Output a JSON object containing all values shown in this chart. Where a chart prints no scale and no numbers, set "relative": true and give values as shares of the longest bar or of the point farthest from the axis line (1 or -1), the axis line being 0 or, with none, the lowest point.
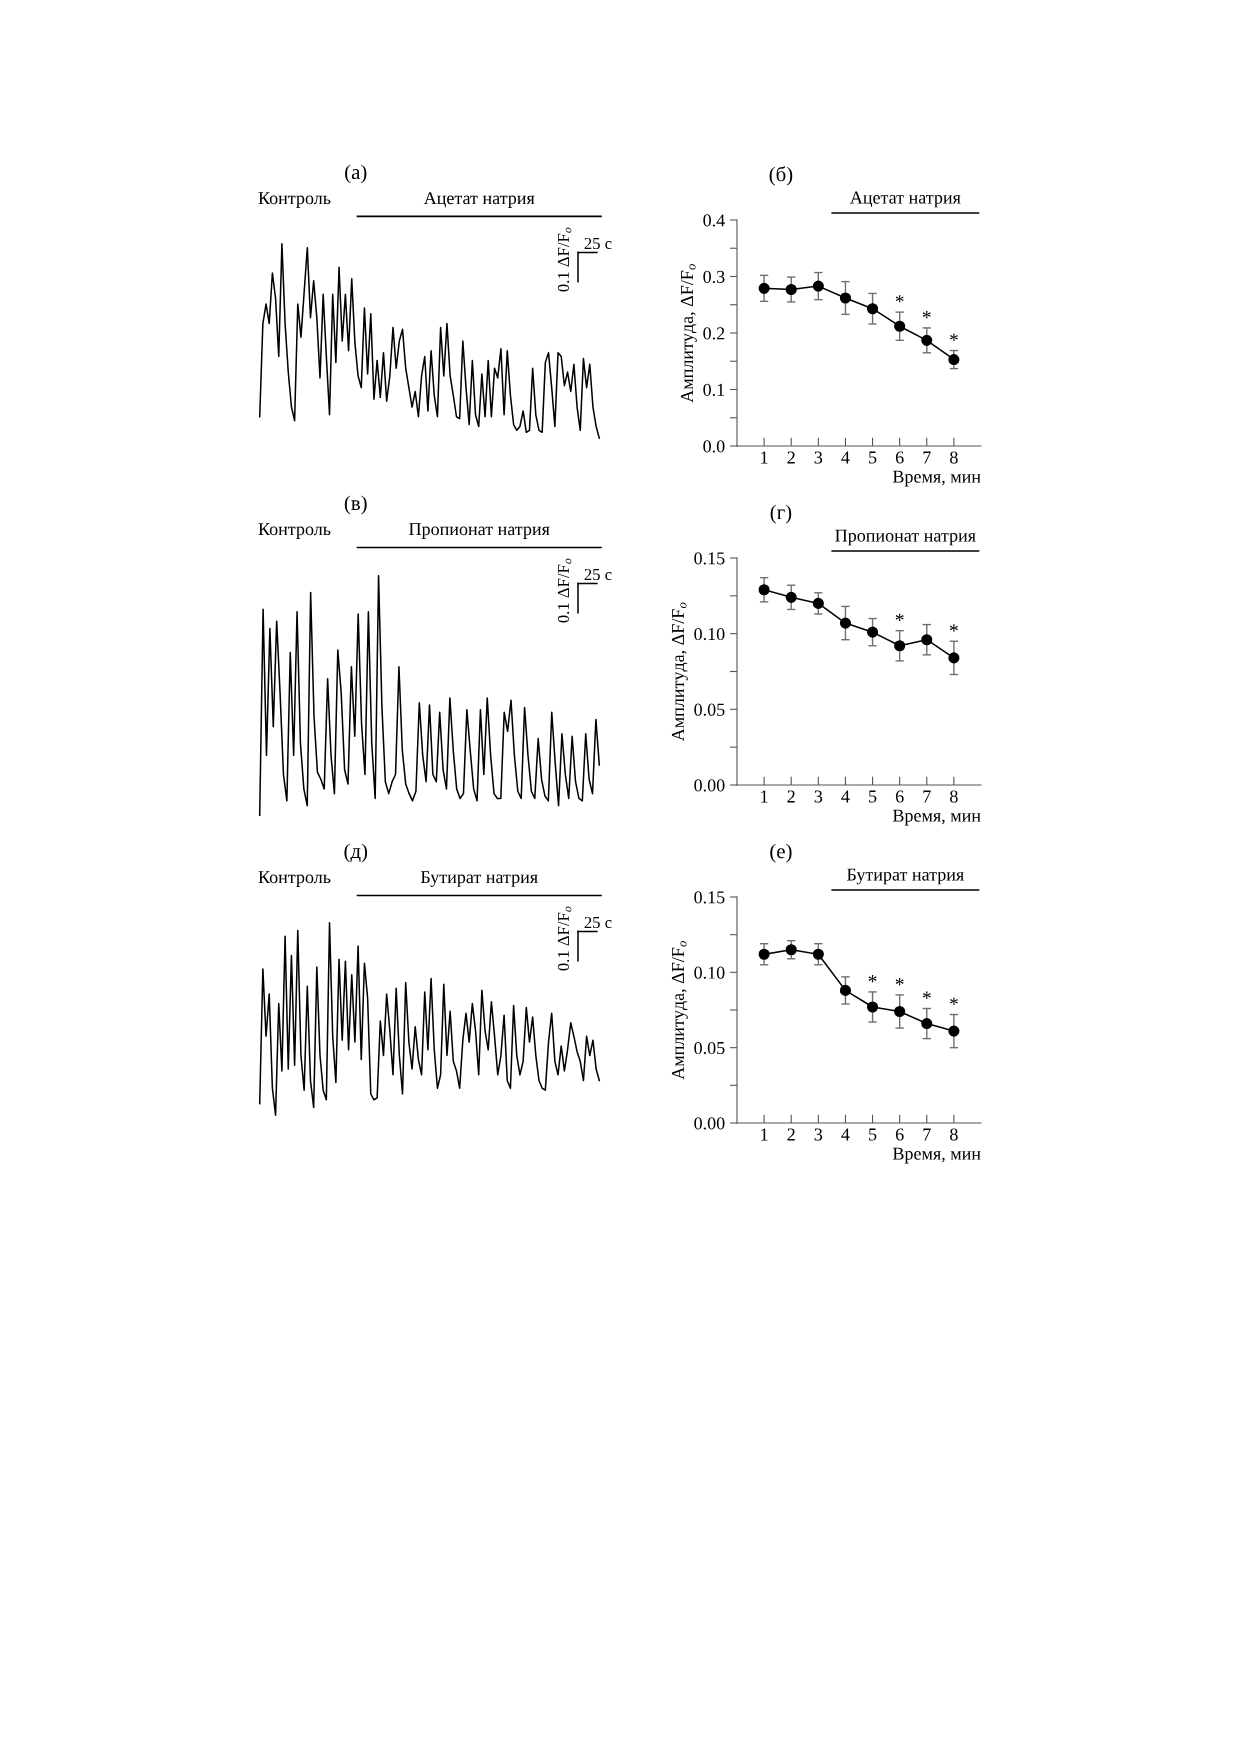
{
  "chart_data": [
    {
      "type": "line",
      "title": "(а)",
      "relative": true,
      "tick_labels": false,
      "grid": false,
      "marker": "none",
      "line_style": "solid",
      "annotations": [
        "Контроль",
        "Ацетат натрия",
        "0.1 ΔF/F$_{o}$",
        "25 с"
      ],
      "categories": [
        null,
        null,
        null,
        null,
        null,
        null,
        null,
        null,
        null,
        null,
        null,
        null,
        null,
        null,
        null,
        null,
        null,
        null,
        null,
        null,
        null,
        null,
        null,
        null,
        null,
        null,
        null,
        null,
        null,
        null,
        null,
        null,
        null,
        null,
        null,
        null,
        null,
        null,
        null,
        null,
        null,
        null,
        null,
        null,
        null,
        null,
        null,
        null,
        null,
        null,
        null,
        null,
        null,
        null,
        null,
        null,
        null,
        null,
        null,
        null,
        null,
        null,
        null,
        null,
        null,
        null,
        null,
        null,
        null,
        null,
        null,
        null,
        null,
        null,
        null,
        null,
        null,
        null,
        null,
        null,
        null,
        null,
        null,
        null,
        null,
        null,
        null,
        null,
        null,
        null,
        null,
        null,
        null,
        null,
        null,
        null,
        null,
        null,
        null,
        null,
        null,
        null,
        null,
        null,
        null,
        null,
        null,
        null
      ],
      "series": [
        {
          "color": "#000000",
          "values": [
            0.11,
            0.59,
            0.69,
            0.59,
            0.85,
            0.72,
            0.42,
            1.0,
            0.59,
            0.34,
            0.16,
            0.09,
            0.69,
            0.52,
            0.75,
            0.98,
            0.62,
            0.81,
            0.62,
            0.31,
            0.74,
            0.42,
            0.12,
            0.74,
            0.39,
            0.88,
            0.5,
            0.74,
            0.45,
            0.82,
            0.49,
            0.32,
            0.26,
            0.67,
            0.33,
            0.64,
            0.2,
            0.4,
            0.21,
            0.44,
            0.19,
            0.32,
            0.57,
            0.36,
            0.5,
            0.56,
            0.36,
            0.26,
            0.16,
            0.24,
            0.11,
            0.32,
            0.42,
            0.14,
            0.45,
            0.22,
            0.11,
            0.57,
            0.32,
            0.59,
            0.32,
            0.22,
            0.11,
            0.1,
            0.5,
            0.26,
            0.07,
            0.4,
            0.12,
            0.06,
            0.33,
            0.11,
            0.4,
            0.11,
            0.36,
            0.31,
            0.46,
            0.12,
            0.45,
            0.22,
            0.07,
            0.04,
            0.06,
            0.14,
            0.03,
            0.04,
            0.36,
            0.12,
            0.04,
            0.03,
            0.39,
            0.44,
            0.26,
            0.06,
            0.44,
            0.42,
            0.27,
            0.34,
            0.24,
            0.38,
            0.16,
            0.04,
            0.41,
            0.26,
            0.38,
            0.16,
            0.06,
            0
          ]
        }
      ]
    },
    {
      "type": "line",
      "title": "(б)",
      "xlabel": "Время, мин",
      "ylabel": "Амплитуда, ΔF/F$_{o}$",
      "grid": false,
      "marker": "circle",
      "line_style": "solid",
      "annotations": [
        "Ацетат натрия",
        {
          "text": "*",
          "x": 6,
          "y": 0.237
        },
        {
          "text": "*",
          "x": 7,
          "y": 0.209
        },
        {
          "text": "*",
          "x": 8,
          "y": 0.169
        }
      ],
      "x": [
        1,
        2,
        3,
        4,
        5,
        6,
        7,
        8
      ],
      "series": [
        {
          "color": "#000000",
          "values": [
            0.279,
            0.277,
            0.283,
            0.262,
            0.243,
            0.212,
            0.187,
            0.153
          ],
          "errors": [
            0.023,
            0.022,
            0.024,
            0.029,
            0.027,
            0.025,
            0.022,
            0.016
          ]
        }
      ],
      "xlim": [
        0,
        9
      ],
      "xticks": [
        1,
        2,
        3,
        4,
        5,
        6,
        7,
        8
      ],
      "ylim": [
        0,
        0.4
      ],
      "yticks": [
        {
          "value": 0,
          "label": "0.0"
        },
        {
          "value": 0.05,
          "label": null
        },
        0.1,
        {
          "value": 0.15,
          "label": null
        },
        0.2,
        {
          "value": 0.25,
          "label": null
        },
        0.3,
        {
          "value": 0.35,
          "label": null
        },
        0.4
      ]
    },
    {
      "type": "line",
      "title": "(в)",
      "relative": true,
      "tick_labels": false,
      "grid": false,
      "marker": "none",
      "line_style": "solid",
      "annotations": [
        "Контроль",
        "Пропионат натрия",
        "0.1 ΔF/F$_{o}$",
        "25 с"
      ],
      "categories": [
        null,
        null,
        null,
        null,
        null,
        null,
        null,
        null,
        null,
        null,
        null,
        null,
        null,
        null,
        null,
        null,
        null,
        null,
        null,
        null,
        null,
        null,
        null,
        null,
        null,
        null,
        null,
        null,
        null,
        null,
        null,
        null,
        null,
        null,
        null,
        null,
        null,
        null,
        null,
        null,
        null,
        null,
        null,
        null,
        null,
        null,
        null,
        null,
        null,
        null,
        null,
        null,
        null,
        null,
        null,
        null,
        null,
        null,
        null,
        null,
        null,
        null,
        null,
        null,
        null,
        null,
        null,
        null,
        null,
        null,
        null,
        null,
        null,
        null,
        null,
        null,
        null,
        null,
        null,
        null,
        null,
        null,
        null,
        null,
        null,
        null,
        null,
        null,
        null,
        null,
        null,
        null,
        null,
        null,
        null,
        null,
        null,
        null,
        null,
        null,
        null
      ],
      "series": [
        {
          "color": "#000000",
          "values": [
            0,
            0.86,
            0.25,
            0.78,
            0.37,
            0.81,
            0.51,
            0.17,
            0.06,
            0.68,
            0.25,
            0.85,
            0.3,
            0.11,
            0.04,
            0.93,
            0.41,
            0.18,
            0.15,
            0.11,
            0.57,
            0.25,
            0.09,
            0.69,
            0.51,
            0.19,
            0.13,
            0.62,
            0.33,
            0.84,
            0.38,
            0.17,
            0.85,
            0.3,
            0.07,
            1.0,
            0.45,
            0.14,
            0.09,
            0.14,
            0.17,
            0.62,
            0.27,
            0.13,
            0.09,
            0.06,
            0.1,
            0.47,
            0.25,
            0.14,
            0.46,
            0.17,
            0.14,
            0.43,
            0.19,
            0.11,
            0.49,
            0.27,
            0.11,
            0.07,
            0.09,
            0.44,
            0.27,
            0.11,
            0.06,
            0.44,
            0.17,
            0.49,
            0.25,
            0.09,
            0.07,
            0.07,
            0.43,
            0.35,
            0.48,
            0.25,
            0.1,
            0.07,
            0.45,
            0.25,
            0.1,
            0.07,
            0.32,
            0.15,
            0.08,
            0.06,
            0.43,
            0.22,
            0.04,
            0.34,
            0.17,
            0.07,
            0.33,
            0.14,
            0.07,
            0.06,
            0.34,
            0.15,
            0.09,
            0.4,
            0.21
          ]
        }
      ]
    },
    {
      "type": "line",
      "title": "(г)",
      "xlabel": "Время, мин",
      "ylabel": "Амплитуда, ΔF/F$_{o}$",
      "grid": false,
      "marker": "circle",
      "line_style": "solid",
      "annotations": [
        "Пропионат натрия",
        {
          "text": "*",
          "x": 6,
          "y": 0.102
        },
        {
          "text": "*",
          "x": 8,
          "y": 0.095
        }
      ],
      "x": [
        1,
        2,
        3,
        4,
        5,
        6,
        7,
        8
      ],
      "series": [
        {
          "color": "#000000",
          "values": [
            0.129,
            0.124,
            0.12,
            0.107,
            0.101,
            0.092,
            0.096,
            0.084
          ],
          "errors": [
            0.008,
            0.008,
            0.007,
            0.011,
            0.009,
            0.01,
            0.01,
            0.011
          ]
        }
      ],
      "xlim": [
        0,
        9
      ],
      "xticks": [
        1,
        2,
        3,
        4,
        5,
        6,
        7,
        8
      ],
      "ylim": [
        0,
        0.15
      ],
      "yticks": [
        {
          "value": 0,
          "label": "0.00"
        },
        {
          "value": 0.025,
          "label": null
        },
        0.05,
        {
          "value": 0.075,
          "label": null
        },
        {
          "value": 0.1,
          "label": "0.10"
        },
        {
          "value": 0.125,
          "label": null
        },
        0.15
      ]
    },
    {
      "type": "line",
      "title": "(д)",
      "relative": true,
      "tick_labels": false,
      "grid": false,
      "marker": "none",
      "line_style": "solid",
      "annotations": [
        "Контроль",
        "Бутират натрия",
        "0.1 ΔF/F$_{o}$",
        "25 с"
      ],
      "categories": [
        null,
        null,
        null,
        null,
        null,
        null,
        null,
        null,
        null,
        null,
        null,
        null,
        null,
        null,
        null,
        null,
        null,
        null,
        null,
        null,
        null,
        null,
        null,
        null,
        null,
        null,
        null,
        null,
        null,
        null,
        null,
        null,
        null,
        null,
        null,
        null,
        null,
        null,
        null,
        null,
        null,
        null,
        null,
        null,
        null,
        null,
        null,
        null,
        null,
        null,
        null,
        null,
        null,
        null,
        null,
        null,
        null,
        null,
        null,
        null,
        null,
        null,
        null,
        null,
        null,
        null,
        null,
        null,
        null,
        null,
        null,
        null,
        null,
        null,
        null,
        null,
        null,
        null,
        null,
        null,
        null,
        null,
        null,
        null,
        null,
        null,
        null,
        null,
        null,
        null,
        null,
        null,
        null,
        null,
        null,
        null,
        null,
        null,
        null,
        null,
        null,
        null,
        null,
        null,
        null,
        null,
        null,
        null
      ],
      "series": [
        {
          "color": "#000000",
          "values": [
            0.06,
            0.76,
            0.41,
            0.63,
            0.14,
            0,
            0.58,
            0.23,
            0.93,
            0.24,
            0.83,
            0.26,
            0.96,
            0.31,
            0.13,
            0.67,
            0.18,
            0.04,
            0.77,
            0.31,
            0.13,
            0.08,
            1.0,
            0.41,
            0.17,
            0.81,
            0.39,
            0.8,
            0.34,
            0.73,
            0.38,
            0.88,
            0.29,
            0.79,
            0.61,
            0.11,
            0.08,
            0.09,
            0.49,
            0.31,
            0.63,
            0.44,
            0.21,
            0.66,
            0.31,
            0.11,
            0.69,
            0.38,
            0.24,
            0.46,
            0.29,
            0.21,
            0.64,
            0.34,
            0.71,
            0.34,
            0.14,
            0.21,
            0.68,
            0.31,
            0.54,
            0.28,
            0.23,
            0.14,
            0.39,
            0.53,
            0.38,
            0.58,
            0.44,
            0.21,
            0.65,
            0.44,
            0.34,
            0.59,
            0.41,
            0.21,
            0.31,
            0.52,
            0.18,
            0.14,
            0.57,
            0.31,
            0.21,
            0.28,
            0.56,
            0.38,
            0.51,
            0.31,
            0.18,
            0.14,
            0.13,
            0.38,
            0.53,
            0.28,
            0.21,
            0.36,
            0.23,
            0.34,
            0.48,
            0.41,
            0.33,
            0.28,
            0.18,
            0.41,
            0.31,
            0.39,
            0.24,
            0.18
          ]
        }
      ]
    },
    {
      "type": "line",
      "title": "(е)",
      "xlabel": "Время, мин",
      "ylabel": "Амплитуда, ΔF/F$_{o}$",
      "grid": false,
      "marker": "circle",
      "line_style": "solid",
      "annotations": [
        "Бутират натрия",
        {
          "text": "*",
          "x": 5,
          "y": 0.087
        },
        {
          "text": "*",
          "x": 6,
          "y": 0.085
        },
        {
          "text": "*",
          "x": 7,
          "y": 0.076
        },
        {
          "text": "*",
          "x": 8,
          "y": 0.072
        }
      ],
      "x": [
        1,
        2,
        3,
        4,
        5,
        6,
        7,
        8
      ],
      "series": [
        {
          "color": "#000000",
          "values": [
            0.112,
            0.115,
            0.112,
            0.088,
            0.077,
            0.074,
            0.066,
            0.061
          ],
          "errors": [
            0.007,
            0.006,
            0.007,
            0.009,
            0.01,
            0.011,
            0.01,
            0.011
          ]
        }
      ],
      "xlim": [
        0,
        9
      ],
      "xticks": [
        1,
        2,
        3,
        4,
        5,
        6,
        7,
        8
      ],
      "ylim": [
        0,
        0.15
      ],
      "yticks": [
        {
          "value": 0,
          "label": "0.00"
        },
        {
          "value": 0.025,
          "label": null
        },
        0.05,
        {
          "value": 0.075,
          "label": null
        },
        {
          "value": 0.1,
          "label": "0.10"
        },
        {
          "value": 0.125,
          "label": null
        },
        0.15
      ]
    }
  ]
}
